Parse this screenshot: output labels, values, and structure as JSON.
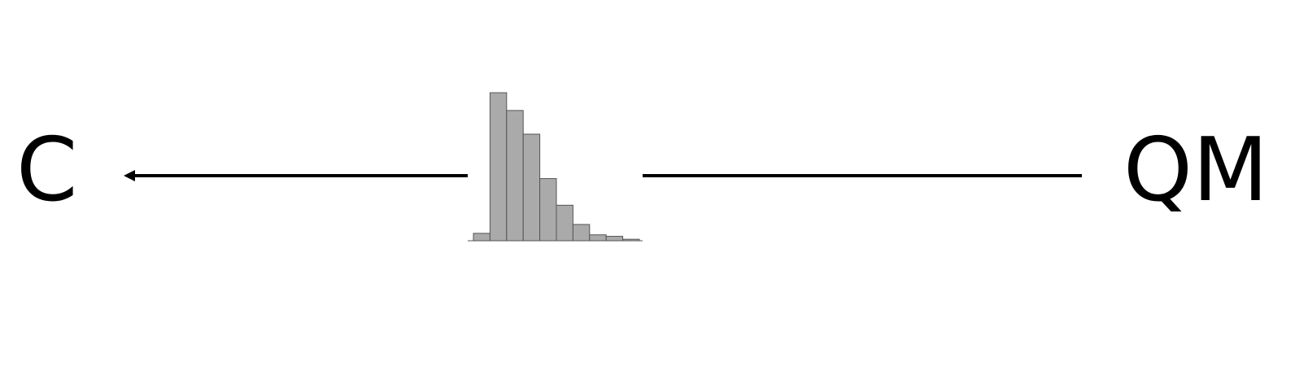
{
  "labels": {
    "left": "C",
    "right": "QM"
  },
  "colors": {
    "bar_fill": "#aaaaaa",
    "bar_stroke": "#555555",
    "line": "#000000"
  },
  "chart_data": {
    "type": "bar",
    "values": [
      0.05,
      1.0,
      0.88,
      0.72,
      0.42,
      0.24,
      0.11,
      0.04,
      0.03,
      0.01
    ]
  }
}
